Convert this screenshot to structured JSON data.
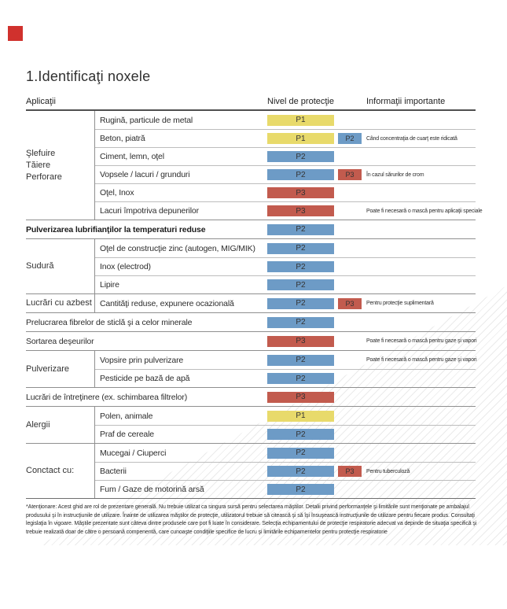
{
  "page": {
    "title": "1.Identificaţi noxele",
    "marker_color": "#d0312d"
  },
  "columns": {
    "applications": "Aplicaţii",
    "protection": "Nivel de protecţie",
    "info": "Informaţii importante"
  },
  "level_colors": {
    "P1": "#e8da6b",
    "P2": "#6d9bc6",
    "P3": "#c25b4e"
  },
  "table": {
    "sections": [
      {
        "group": [
          "Şlefuire",
          "Tăiere",
          "Perforare"
        ],
        "items": [
          {
            "label": "Rugină, particule de metal",
            "badge": "P1"
          },
          {
            "label": "Beton, piatră",
            "badge": "P1",
            "badge2": "P2",
            "info": "Când concentraţia de cuarţ este ridicată"
          },
          {
            "label": "Ciment, lemn, oţel",
            "badge": "P2"
          },
          {
            "label": "Vopsele / lacuri / grunduri",
            "badge": "P2",
            "badge2": "P3",
            "info": "În cazul sărurilor de crom"
          },
          {
            "label": "Oţel, Inox",
            "badge": "P3"
          },
          {
            "label": "Lacuri împotriva depunerilor",
            "badge": "P3",
            "info": "Poate fi necesară o mască pentru aplicaţii speciale"
          }
        ]
      },
      {
        "group": null,
        "items": [
          {
            "label": "Pulverizarea lubrifianţilor la temperaturi reduse",
            "bold": true,
            "badge": "P2"
          }
        ]
      },
      {
        "group": [
          "Sudură"
        ],
        "items": [
          {
            "label": "Oţel de construcţie zinc (autogen, MIG/MIK)",
            "badge": "P2"
          },
          {
            "label": "Inox (electrod)",
            "badge": "P2"
          },
          {
            "label": "Lipire",
            "badge": "P2"
          }
        ]
      },
      {
        "group": [
          "Lucrări cu azbest"
        ],
        "items": [
          {
            "label": "Cantităţi reduse, expunere ocazională",
            "badge": "P2",
            "badge2": "P3",
            "info": "Pentru protecţie suplimentară"
          }
        ]
      },
      {
        "group": null,
        "items": [
          {
            "label": "Prelucrarea fibrelor de sticlă şi a celor minerale",
            "badge": "P2"
          }
        ]
      },
      {
        "group": null,
        "items": [
          {
            "label": "Sortarea deşeurilor",
            "badge": "P3",
            "info": "Poate fi necesară o mască pentru gaze şi vapori"
          }
        ]
      },
      {
        "group": [
          "Pulverizare"
        ],
        "items": [
          {
            "label": "Vopsire prin pulverizare",
            "badge": "P2",
            "info": "Poate fi necesară o mască pentru gaze şi vapori"
          },
          {
            "label": "Pesticide pe bază de apă",
            "badge": "P2"
          }
        ]
      },
      {
        "group": null,
        "items": [
          {
            "label": "Lucrări de întreţinere (ex. schimbarea filtrelor)",
            "badge": "P3"
          }
        ]
      },
      {
        "group": [
          "Alergii"
        ],
        "items": [
          {
            "label": "Polen, animale",
            "badge": "P1"
          },
          {
            "label": "Praf de cereale",
            "badge": "P2"
          }
        ]
      },
      {
        "group": [
          "Conctact cu:"
        ],
        "items": [
          {
            "label": "Mucegai / Ciuperci",
            "badge": "P2"
          },
          {
            "label": "Bacterii",
            "badge": "P2",
            "badge2": "P3",
            "info": "Pentru tuberculoză"
          },
          {
            "label": "Fum / Gaze de motorină arsă",
            "badge": "P2"
          }
        ]
      }
    ]
  },
  "footnote": "*Atenţionare: Acest ghid are rol de prezentare generală. Nu trebuie utilizat ca singura sursă pentru selectarea măştilor. Detalii privind performanţele şi limitările sunt menţionate pe ambalajul produsului şi în instrucţiunile de utilizare. Înainte de utilizarea măştilor de protecţie, utilizatorul trebuie să citească şi să îşi însuşească instrucţiunile de utilizare pentru fiecare produs. Consultaţi legislaţia în vigoare. Măştile prezentate sunt câteva dintre produsele care pot fi luate în considerare. Selecţia echipamentului de protecţie respiratorie adecvat va depinde de situaţia specifică şi trebuie realizată doar de către o persoană compenentă, care cunoaşte condiţiile specifice de lucru şi limitările echipamentelor pentru protecţie respiratorie"
}
